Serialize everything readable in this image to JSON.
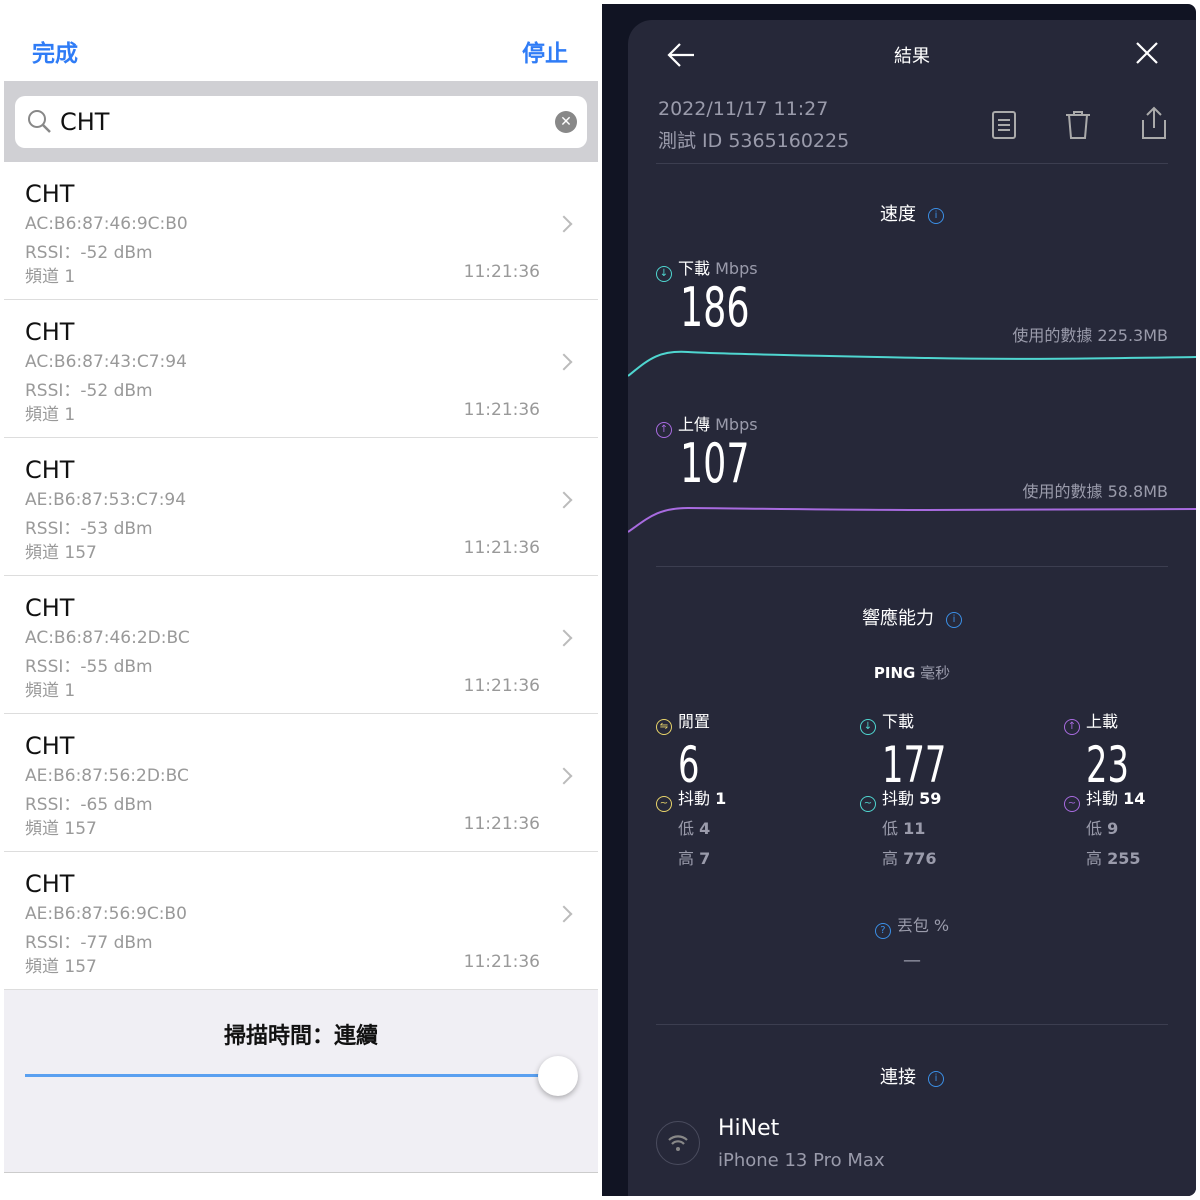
{
  "left": {
    "done": "完成",
    "stop": "停止",
    "search": {
      "value": "CHT"
    },
    "rows": [
      {
        "name": "CHT",
        "mac": "AC:B6:87:46:9C:B0",
        "rssi": "RSSI：-52 dBm",
        "channel": "頻道 1",
        "time": "11:21:36"
      },
      {
        "name": "CHT",
        "mac": "AC:B6:87:43:C7:94",
        "rssi": "RSSI：-52 dBm",
        "channel": "頻道 1",
        "time": "11:21:36"
      },
      {
        "name": "CHT",
        "mac": "AE:B6:87:53:C7:94",
        "rssi": "RSSI：-53 dBm",
        "channel": "頻道 157",
        "time": "11:21:36"
      },
      {
        "name": "CHT",
        "mac": "AC:B6:87:46:2D:BC",
        "rssi": "RSSI：-55 dBm",
        "channel": "頻道 1",
        "time": "11:21:36"
      },
      {
        "name": "CHT",
        "mac": "AE:B6:87:56:2D:BC",
        "rssi": "RSSI：-65 dBm",
        "channel": "頻道 157",
        "time": "11:21:36"
      },
      {
        "name": "CHT",
        "mac": "AE:B6:87:56:9C:B0",
        "rssi": "RSSI：-77 dBm",
        "channel": "頻道 157",
        "time": "11:21:36"
      }
    ],
    "scan_label": "掃描時間：連續",
    "slider_value": 1.0
  },
  "right": {
    "title": "結果",
    "datetime": "2022/11/17 11:27",
    "test_id": "測試 ID 5365160225",
    "speed_title": "速度",
    "download": {
      "label": "下載",
      "unit": "Mbps",
      "value": "186",
      "data_used": "使用的數據 225.3MB",
      "color": "#4fd6d0"
    },
    "upload": {
      "label": "上傳",
      "unit": "Mbps",
      "value": "107",
      "data_used": "使用的數據 58.8MB",
      "color": "#a86be0"
    },
    "response_title": "響應能力",
    "ping_label": "PING",
    "ping_unit": "毫秒",
    "ping": [
      {
        "label": "閒置",
        "value": "6",
        "jitter": "抖動",
        "jitter_value": "1",
        "low": "低",
        "low_value": "4",
        "high": "高",
        "high_value": "7",
        "color": "#e8d46a"
      },
      {
        "label": "下載",
        "value": "177",
        "jitter": "抖動",
        "jitter_value": "59",
        "low": "低",
        "low_value": "11",
        "high": "高",
        "high_value": "776",
        "color": "#4fd6d0"
      },
      {
        "label": "上載",
        "value": "23",
        "jitter": "抖動",
        "jitter_value": "14",
        "low": "低",
        "low_value": "9",
        "high": "高",
        "high_value": "255",
        "color": "#a86be0"
      }
    ],
    "packet_loss_label": "丟包 %",
    "packet_loss_value": "—",
    "connection_title": "連接",
    "isp": "HiNet",
    "device": "iPhone 13 Pro Max"
  }
}
